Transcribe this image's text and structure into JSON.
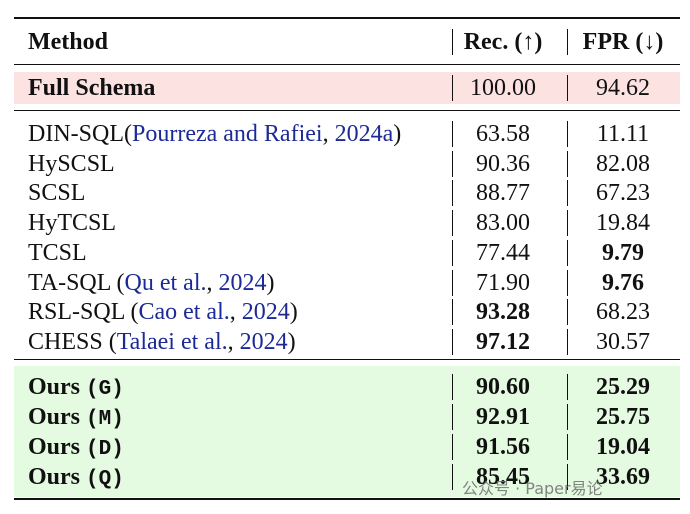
{
  "header": {
    "columns": [
      "Method",
      "Rec. (↑)",
      "FPR (↓)"
    ]
  },
  "sections": [
    {
      "background": "#fde2e2",
      "rows": [
        {
          "method": [
            {
              "text": "Full Schema"
            }
          ],
          "rec": "100.00",
          "fpr": "94.62",
          "bold": [
            true,
            false,
            false
          ]
        }
      ]
    },
    {
      "rows": [
        {
          "method": [
            {
              "text": "DIN-SQL("
            },
            {
              "text": "Pourreza and Rafiei",
              "cite": true
            },
            {
              "text": ", "
            },
            {
              "text": "2024a",
              "cite": true
            },
            {
              "text": ")"
            }
          ],
          "rec": "63.58",
          "fpr": "11.11",
          "bold": [
            false,
            false,
            false
          ]
        },
        {
          "method": [
            {
              "text": "HySCSL"
            }
          ],
          "rec": "90.36",
          "fpr": "82.08",
          "bold": [
            false,
            false,
            false
          ]
        },
        {
          "method": [
            {
              "text": "SCSL"
            }
          ],
          "rec": "88.77",
          "fpr": "67.23",
          "bold": [
            false,
            false,
            false
          ]
        },
        {
          "method": [
            {
              "text": "HyTCSL"
            }
          ],
          "rec": "83.00",
          "fpr": "19.84",
          "bold": [
            false,
            false,
            false
          ]
        },
        {
          "method": [
            {
              "text": "TCSL"
            }
          ],
          "rec": "77.44",
          "fpr": "9.79",
          "bold": [
            false,
            false,
            true
          ]
        },
        {
          "method": [
            {
              "text": "TA-SQL ("
            },
            {
              "text": "Qu et al.",
              "cite": true
            },
            {
              "text": ", "
            },
            {
              "text": "2024",
              "cite": true
            },
            {
              "text": ")"
            }
          ],
          "rec": "71.90",
          "fpr": "9.76",
          "bold": [
            false,
            false,
            true
          ]
        },
        {
          "method": [
            {
              "text": "RSL-SQL ("
            },
            {
              "text": "Cao et al.",
              "cite": true
            },
            {
              "text": ", "
            },
            {
              "text": "2024",
              "cite": true
            },
            {
              "text": ")"
            }
          ],
          "rec": "93.28",
          "fpr": "68.23",
          "bold": [
            false,
            true,
            false
          ]
        },
        {
          "method": [
            {
              "text": "CHESS ("
            },
            {
              "text": "Talaei et al.",
              "cite": true
            },
            {
              "text": ", "
            },
            {
              "text": "2024",
              "cite": true
            },
            {
              "text": ")"
            }
          ],
          "rec": "97.12",
          "fpr": "30.57",
          "bold": [
            false,
            true,
            false
          ]
        }
      ]
    },
    {
      "background": "#e5fbe1",
      "rows": [
        {
          "method": [
            {
              "text": "Ours "
            },
            {
              "text": "(G)",
              "mono": true
            }
          ],
          "rec": "90.60",
          "fpr": "25.29",
          "bold": [
            true,
            true,
            true
          ]
        },
        {
          "method": [
            {
              "text": "Ours "
            },
            {
              "text": "(M)",
              "mono": true
            }
          ],
          "rec": "92.91",
          "fpr": "25.75",
          "bold": [
            true,
            true,
            true
          ]
        },
        {
          "method": [
            {
              "text": "Ours "
            },
            {
              "text": "(D)",
              "mono": true
            }
          ],
          "rec": "91.56",
          "fpr": "19.04",
          "bold": [
            true,
            true,
            true
          ]
        },
        {
          "method": [
            {
              "text": "Ours "
            },
            {
              "text": "(Q)",
              "mono": true
            }
          ],
          "rec": "85.45",
          "fpr": "33.69",
          "bold": [
            true,
            true,
            true
          ]
        }
      ]
    }
  ],
  "watermark": "公众号 · Paper易论"
}
